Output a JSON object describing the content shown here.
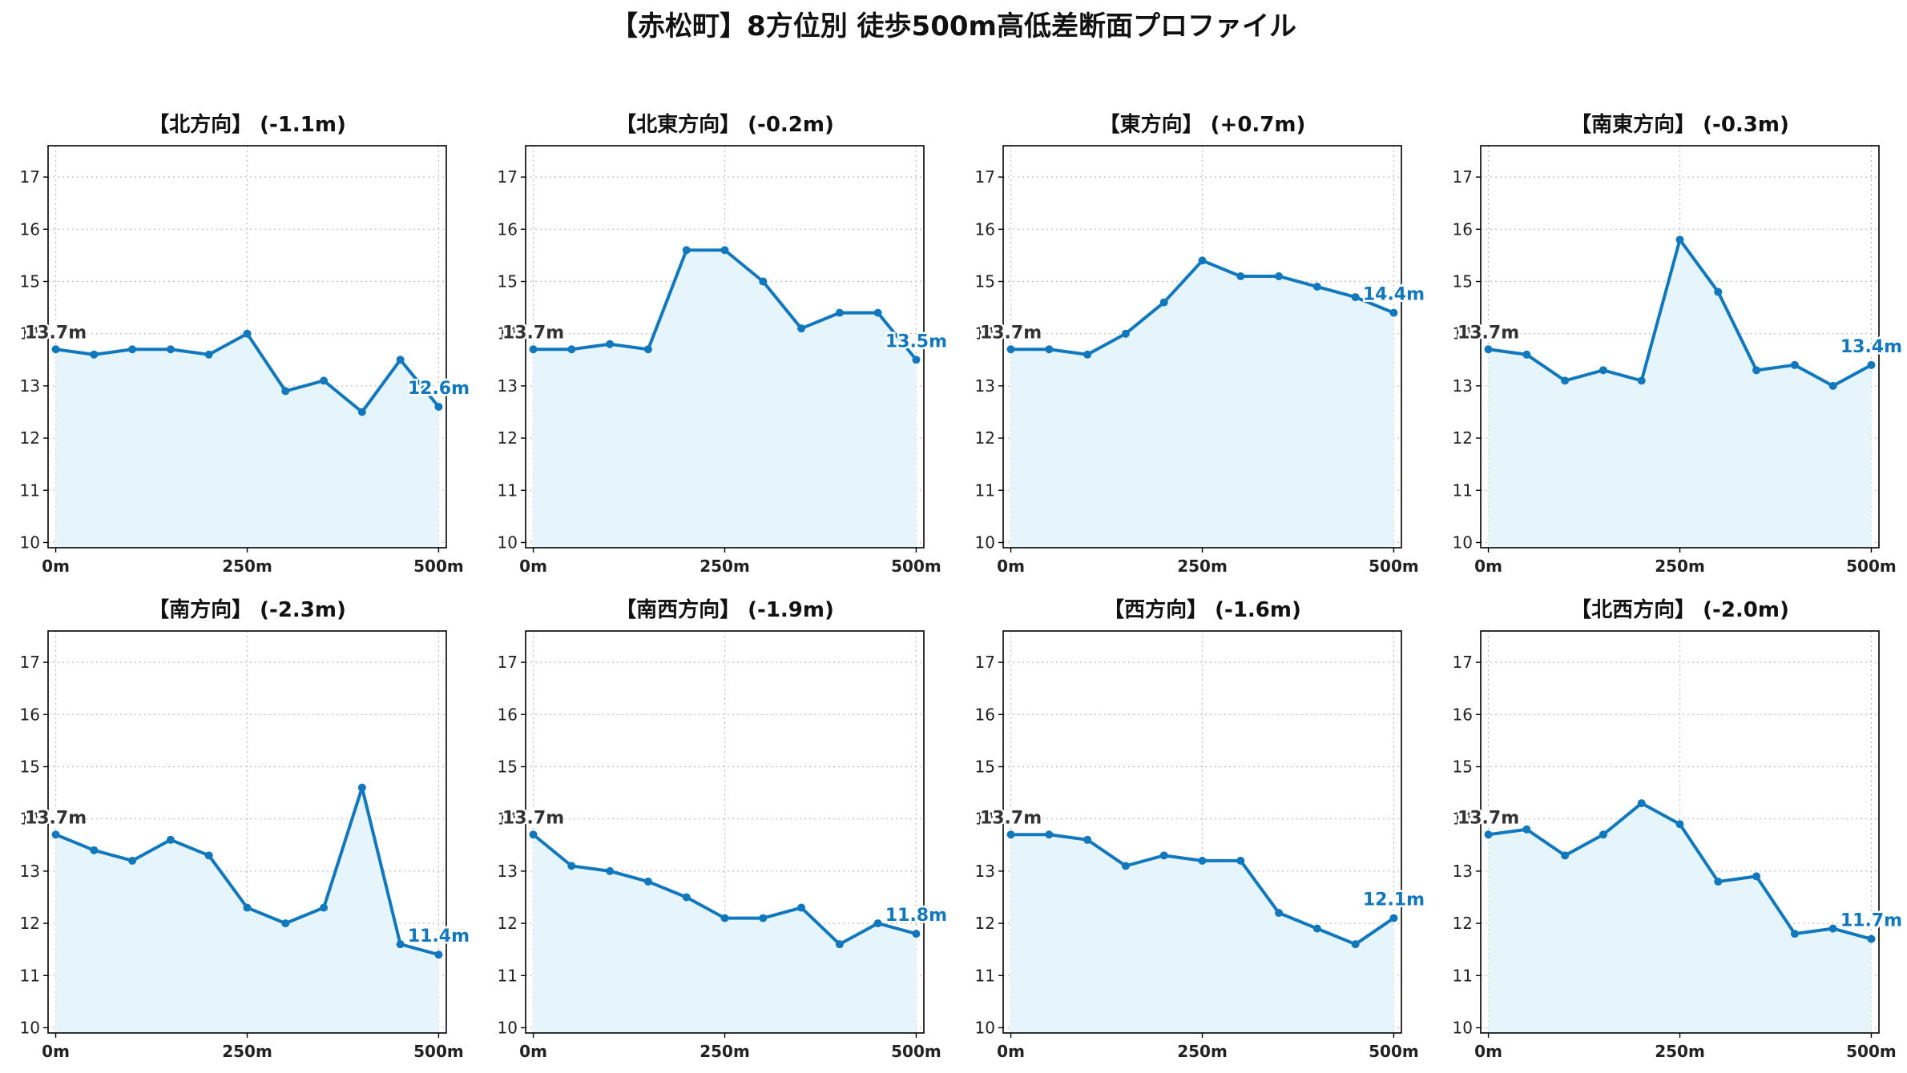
{
  "title": "【赤松町】8方位別 徒歩500m高低差断面プロファイル",
  "colors": {
    "line": "#1178bd",
    "fill": "#e6f5fb",
    "grid": "#bdbdbd",
    "endLabel": "#1178bd",
    "startLabel": "#333333"
  },
  "axes": {
    "x_ticks": [
      0,
      250,
      500
    ],
    "x_tick_labels": [
      "0m",
      "250m",
      "500m"
    ],
    "y_ticks": [
      10,
      11,
      12,
      13,
      14,
      15,
      16,
      17
    ],
    "y_tick_labels": [
      "10",
      "11",
      "12",
      "13",
      "14",
      "15",
      "16",
      "17"
    ],
    "xlim": [
      -10,
      510
    ],
    "ylim": [
      9.9,
      17.6
    ],
    "grid": true
  },
  "chart_data": {
    "type": "line",
    "x": [
      0,
      50,
      100,
      150,
      200,
      250,
      300,
      350,
      400,
      450,
      500
    ],
    "panels": [
      {
        "title": "【北方向】 (-1.1m)",
        "values": [
          13.7,
          13.6,
          13.7,
          13.7,
          13.6,
          14.0,
          12.9,
          13.1,
          12.5,
          13.5,
          12.6
        ],
        "start_label": "13.7m",
        "end_label": "12.6m"
      },
      {
        "title": "【北東方向】 (-0.2m)",
        "values": [
          13.7,
          13.7,
          13.8,
          13.7,
          15.6,
          15.6,
          15.0,
          14.1,
          14.4,
          14.4,
          13.5
        ],
        "start_label": "13.7m",
        "end_label": "13.5m"
      },
      {
        "title": "【東方向】 (+0.7m)",
        "values": [
          13.7,
          13.7,
          13.6,
          14.0,
          14.6,
          15.4,
          15.1,
          15.1,
          14.9,
          14.7,
          14.4
        ],
        "start_label": "13.7m",
        "end_label": "14.4m"
      },
      {
        "title": "【南東方向】 (-0.3m)",
        "values": [
          13.7,
          13.6,
          13.1,
          13.3,
          13.1,
          15.8,
          14.8,
          13.3,
          13.4,
          13.0,
          13.4
        ],
        "start_label": "13.7m",
        "end_label": "13.4m"
      },
      {
        "title": "【南方向】 (-2.3m)",
        "values": [
          13.7,
          13.4,
          13.2,
          13.6,
          13.3,
          12.3,
          12.0,
          12.3,
          14.6,
          11.6,
          11.4
        ],
        "start_label": "13.7m",
        "end_label": "11.4m"
      },
      {
        "title": "【南西方向】 (-1.9m)",
        "values": [
          13.7,
          13.1,
          13.0,
          12.8,
          12.5,
          12.1,
          12.1,
          12.3,
          11.6,
          12.0,
          11.8
        ],
        "start_label": "13.7m",
        "end_label": "11.8m"
      },
      {
        "title": "【西方向】 (-1.6m)",
        "values": [
          13.7,
          13.7,
          13.6,
          13.1,
          13.3,
          13.2,
          13.2,
          12.2,
          11.9,
          11.6,
          12.1
        ],
        "start_label": "13.7m",
        "end_label": "12.1m"
      },
      {
        "title": "【北西方向】 (-2.0m)",
        "values": [
          13.7,
          13.8,
          13.3,
          13.7,
          14.3,
          13.9,
          12.8,
          12.9,
          11.8,
          11.9,
          11.7
        ],
        "start_label": "13.7m",
        "end_label": "11.7m"
      }
    ]
  }
}
